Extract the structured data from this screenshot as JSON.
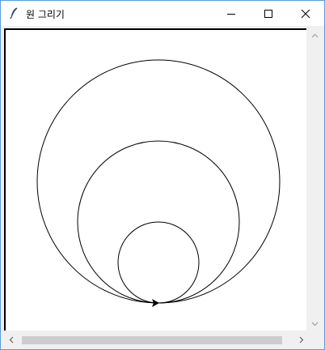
{
  "window": {
    "title": "원 그리기",
    "icons": {
      "app": "feather-icon",
      "minimize": "minimize-icon",
      "maximize": "maximize-icon",
      "close": "close-icon"
    }
  },
  "canvas": {
    "background": "#ffffff",
    "stroke": "#000000",
    "drawing": {
      "shape": "nested circles sharing a bottom tangent point",
      "circles": [
        {
          "radius": 50
        },
        {
          "radius": 100
        },
        {
          "radius": 150
        }
      ],
      "turtle": "arrow-cursor-icon"
    }
  },
  "scrollbars": {
    "vertical": {
      "up_icon": "chevron-up-icon",
      "down_icon": "chevron-down-icon"
    },
    "horizontal": {
      "left_icon": "chevron-left-icon",
      "right_icon": "chevron-right-icon"
    }
  }
}
